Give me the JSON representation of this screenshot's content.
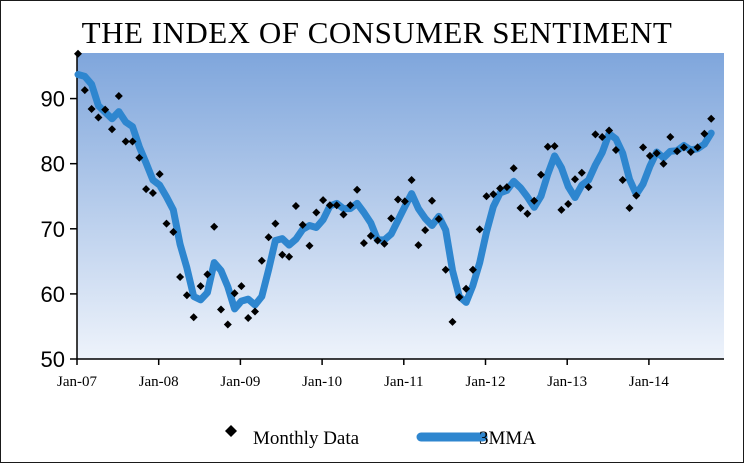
{
  "chart_data": {
    "type": "line",
    "title": "THE INDEX OF CONSUMER SENTIMENT",
    "ylim": [
      50,
      97
    ],
    "yticks": [
      50,
      60,
      70,
      80,
      90
    ],
    "x_tick_labels": [
      "Jan-07",
      "Jan-08",
      "Jan-09",
      "Jan-10",
      "Jan-11",
      "Jan-12",
      "Jan-13",
      "Jan-14"
    ],
    "x_start": "2007-01",
    "grid": false,
    "legend_position": "bottom",
    "colors": {
      "line": "#2e86cf",
      "markers": "#000000",
      "plot_top": "#7fa6dc",
      "plot_bottom": "#eef3fb"
    },
    "series": [
      {
        "name": "Monthly Data",
        "style": "markers",
        "values": [
          96.9,
          91.3,
          88.4,
          87.1,
          88.3,
          85.3,
          90.4,
          83.4,
          83.4,
          80.9,
          76.1,
          75.5,
          78.4,
          70.8,
          69.5,
          62.6,
          59.8,
          56.4,
          61.2,
          63.0,
          70.3,
          57.6,
          55.3,
          60.1,
          61.2,
          56.3,
          57.3,
          65.1,
          68.7,
          70.8,
          66.0,
          65.7,
          73.5,
          70.6,
          67.4,
          72.5,
          74.4,
          73.6,
          73.6,
          72.2,
          73.6,
          76.0,
          67.8,
          68.9,
          68.2,
          67.7,
          71.6,
          74.5,
          74.2,
          77.5,
          67.5,
          69.8,
          74.3,
          71.5,
          63.7,
          55.7,
          59.5,
          60.8,
          63.7,
          69.9,
          75.0,
          75.3,
          76.2,
          76.4,
          79.3,
          73.2,
          72.3,
          74.3,
          78.3,
          82.6,
          82.7,
          72.9,
          73.8,
          77.6,
          78.6,
          76.4,
          84.5,
          84.1,
          85.1,
          82.1,
          77.5,
          73.2,
          75.1,
          82.5,
          81.2,
          81.6,
          80.0,
          84.1,
          81.9,
          82.5,
          81.8,
          82.5,
          84.6,
          86.9
        ]
      },
      {
        "name": "3MMA",
        "style": "line",
        "values": [
          93.7,
          93.4,
          92.2,
          88.9,
          87.9,
          86.9,
          88.0,
          86.4,
          85.7,
          82.6,
          80.1,
          77.5,
          76.7,
          74.9,
          72.9,
          67.6,
          64.0,
          59.6,
          59.1,
          60.2,
          64.8,
          63.6,
          61.1,
          57.7,
          58.9,
          59.2,
          58.3,
          59.6,
          63.7,
          68.2,
          68.5,
          67.5,
          68.4,
          69.9,
          70.5,
          70.2,
          71.4,
          73.5,
          73.9,
          73.1,
          73.1,
          73.9,
          72.5,
          70.9,
          68.3,
          68.3,
          69.2,
          71.3,
          73.4,
          75.4,
          73.1,
          71.6,
          70.5,
          71.9,
          69.8,
          63.6,
          59.6,
          58.7,
          61.3,
          64.8,
          69.5,
          73.4,
          75.5,
          75.9,
          77.3,
          76.3,
          74.9,
          73.3,
          75.0,
          78.4,
          81.2,
          79.4,
          76.5,
          74.8,
          76.7,
          77.5,
          79.8,
          81.7,
          84.6,
          83.8,
          81.6,
          77.6,
          75.3,
          76.9,
          79.6,
          81.8,
          80.9,
          81.9,
          82.0,
          82.8,
          82.1,
          82.3,
          83.0,
          84.7
        ]
      }
    ]
  }
}
